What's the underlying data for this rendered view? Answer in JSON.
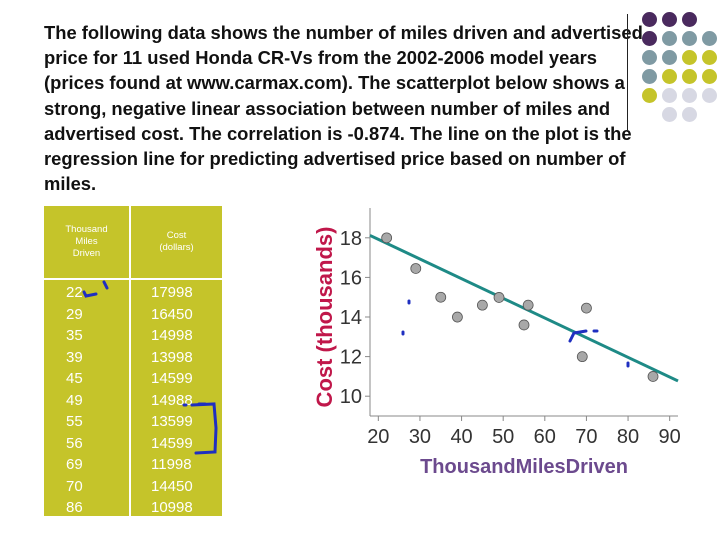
{
  "description": "The following data shows the number of miles driven and advertised price for 11 used Honda CR-Vs from the 2002-2006 model years (prices found at www.carmax.com). The scatterplot below shows a strong, negative linear association between number of miles and advertised cost. The correlation is -0.874. The line on the plot is the regression line for predicting advertised price based on number of miles.",
  "colors": {
    "purple": "#4a2a5e",
    "teal": "#7f9aa3",
    "olive": "#c5c42a",
    "light": "#d7d8e3",
    "line": "#1e8a86",
    "axis_label_purple": "#6c4a8e",
    "ylabel_red": "#c0174a",
    "marker_ink": "#1f2fc0"
  },
  "table": {
    "header_miles": [
      "Thousand",
      "Miles",
      "Driven"
    ],
    "header_cost": [
      "Cost",
      "(dollars)"
    ],
    "miles": [
      "22",
      "29",
      "35",
      "39",
      "45",
      "49",
      "55",
      "56",
      "69",
      "70",
      "86"
    ],
    "cost": [
      "17998",
      "16450",
      "14998",
      "13998",
      "14599",
      "14988",
      "13599",
      "14599",
      "11998",
      "14450",
      "10998"
    ]
  },
  "chart_data": {
    "type": "scatter",
    "title": "",
    "xlabel": "ThousandMilesDriven",
    "ylabel": "Cost (thousands)",
    "xlim": [
      18,
      92
    ],
    "ylim": [
      9,
      19
    ],
    "xticks": [
      20,
      30,
      40,
      50,
      60,
      70,
      80,
      90
    ],
    "yticks": [
      10,
      12,
      14,
      16,
      18
    ],
    "x": [
      22,
      29,
      35,
      39,
      45,
      49,
      55,
      56,
      69,
      70,
      86
    ],
    "y": [
      17.998,
      16.45,
      14.998,
      13.998,
      14.599,
      14.988,
      13.599,
      14.599,
      11.998,
      14.45,
      10.998
    ],
    "regression_line": {
      "x": [
        18,
        92
      ],
      "y": [
        18.12,
        10.77
      ]
    },
    "correlation": -0.874
  }
}
